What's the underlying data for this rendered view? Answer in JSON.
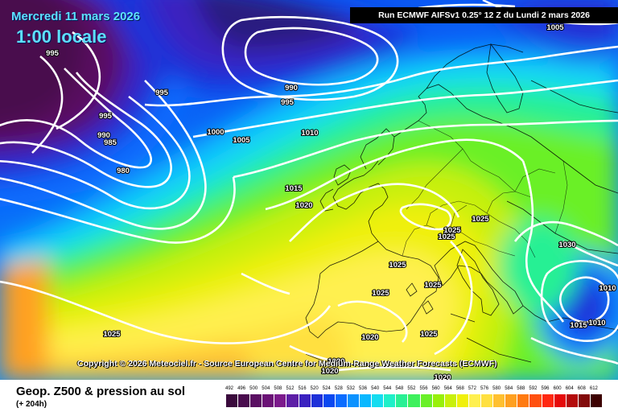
{
  "header": {
    "date": "Mercredi 11 mars 2026",
    "local_time": "1:00 locale",
    "run_info": "Run ECMWF AIFSv1 0.25° 12 Z du Lundi 2 mars 2026"
  },
  "copyright": "Copyright © 2026 Meteociel.fr - Source European Centre for Medium-Range Weather Forecasts (ECMWF)",
  "footer": {
    "title": "Geop. Z500 & pression au sol",
    "subtitle": "(+ 204h)"
  },
  "legend": {
    "labels": [
      "492",
      "496",
      "500",
      "504",
      "508",
      "512",
      "516",
      "520",
      "524",
      "528",
      "532",
      "536",
      "540",
      "544",
      "548",
      "552",
      "556",
      "560",
      "564",
      "568",
      "572",
      "576",
      "580",
      "584",
      "588",
      "592",
      "596",
      "600",
      "604",
      "608",
      "612"
    ],
    "colors": [
      "#3a0a3c",
      "#4a0c4e",
      "#5a0f62",
      "#6b1276",
      "#7c1a8c",
      "#5d1ea6",
      "#3b22c0",
      "#1e30d8",
      "#0a48f0",
      "#0a6cff",
      "#0a92ff",
      "#0ab8ff",
      "#14dcf0",
      "#1ef0c8",
      "#28f094",
      "#3ef05c",
      "#6af028",
      "#98f00a",
      "#c8f00a",
      "#f0f00a",
      "#fff050",
      "#ffe040",
      "#ffc030",
      "#ffa020",
      "#ff7a10",
      "#ff5010",
      "#ff2810",
      "#e60a0a",
      "#b40a0a",
      "#820a0a",
      "#3c0000"
    ]
  },
  "isobars": [
    {
      "label": "1005",
      "pos": "top-right"
    },
    {
      "label": "995",
      "pos": "nw-1"
    },
    {
      "label": "995",
      "pos": "nw-2"
    },
    {
      "label": "995",
      "pos": "nw-3"
    },
    {
      "label": "990",
      "pos": "nw-4"
    },
    {
      "label": "985",
      "pos": "nw-5"
    },
    {
      "label": "980",
      "pos": "nw-6"
    },
    {
      "label": "990",
      "pos": "n-1"
    },
    {
      "label": "995",
      "pos": "n-2"
    },
    {
      "label": "1000",
      "pos": "c-1"
    },
    {
      "label": "1005",
      "pos": "c-2"
    },
    {
      "label": "1010",
      "pos": "c-3"
    },
    {
      "label": "1015",
      "pos": "c-4"
    },
    {
      "label": "1020",
      "pos": "c-5"
    },
    {
      "label": "1025",
      "pos": "e-1"
    },
    {
      "label": "1025",
      "pos": "e-2"
    },
    {
      "label": "1025",
      "pos": "e-3"
    },
    {
      "label": "1025",
      "pos": "e-4"
    },
    {
      "label": "1025",
      "pos": "e-5"
    },
    {
      "label": "1025",
      "pos": "e-6"
    },
    {
      "label": "1025",
      "pos": "s-1"
    },
    {
      "label": "1025",
      "pos": "s-2"
    },
    {
      "label": "1020",
      "pos": "s-3"
    },
    {
      "label": "1020",
      "pos": "s-4"
    },
    {
      "label": "1030",
      "pos": "se-1"
    },
    {
      "label": "1010",
      "pos": "se-2"
    },
    {
      "label": "1015",
      "pos": "se-3"
    },
    {
      "label": "1010",
      "pos": "se-4"
    },
    {
      "label": "1020",
      "pos": "s-5"
    },
    {
      "label": "1020",
      "pos": "s-6"
    }
  ]
}
